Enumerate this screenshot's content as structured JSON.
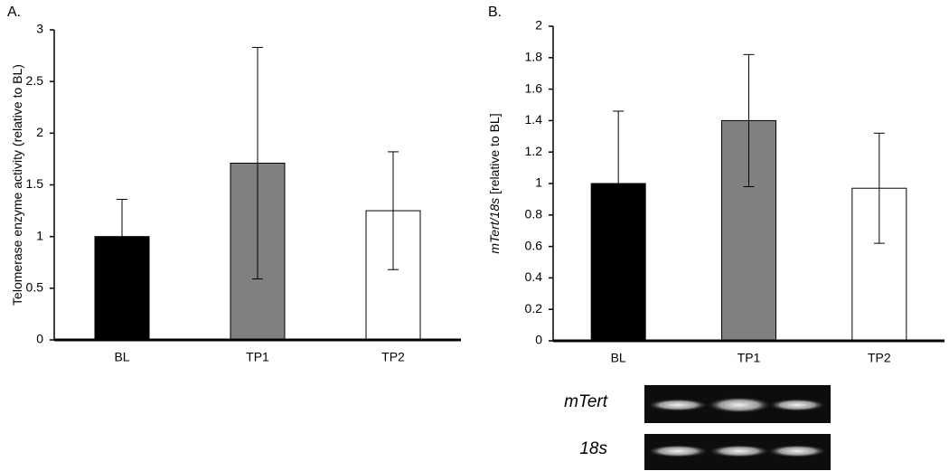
{
  "chart_data": [
    {
      "type": "bar",
      "panel": "A.",
      "ylabel": "Telomerase enzyme activity (relative to BL)",
      "categories": [
        "BL",
        "TP1",
        "TP2"
      ],
      "values": [
        1.0,
        1.71,
        1.25
      ],
      "errors": [
        0.36,
        1.12,
        0.57
      ],
      "colors": [
        "#000000",
        "#808080",
        "#ffffff"
      ],
      "ylim": [
        0,
        3
      ],
      "yticks": [
        0,
        0.5,
        1,
        1.5,
        2,
        2.5,
        3
      ]
    },
    {
      "type": "bar",
      "panel": "B.",
      "ylabel_italic": "mTert/18s",
      "ylabel": "[relative to BL]",
      "categories": [
        "BL",
        "TP1",
        "TP2"
      ],
      "values": [
        1.0,
        1.4,
        0.97
      ],
      "errors": [
        0.46,
        0.42,
        0.35
      ],
      "colors": [
        "#000000",
        "#808080",
        "#ffffff"
      ],
      "ylim": [
        0,
        2
      ],
      "yticks": [
        0,
        0.2,
        0.4,
        0.6,
        0.8,
        1,
        1.2,
        1.4,
        1.6,
        1.8,
        2
      ]
    }
  ],
  "gel": {
    "labels": [
      "mTert",
      "18s"
    ]
  }
}
